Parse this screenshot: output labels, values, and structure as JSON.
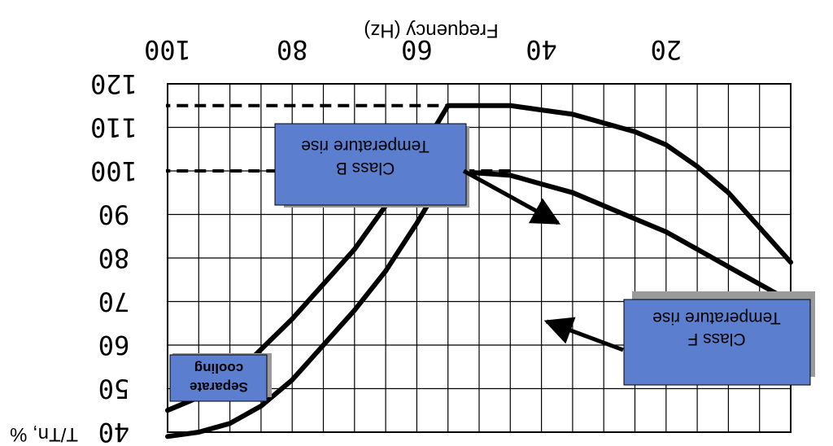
{
  "chart_data": {
    "type": "line",
    "orientation": "mirrored-horizontal-and-vertical",
    "title": "",
    "xlabel": "Frequency (Hz)",
    "ylabel": "T/Tn, %",
    "xlim": [
      0,
      100
    ],
    "ylim": [
      40,
      120
    ],
    "x_ticks": [
      "20",
      "40",
      "60",
      "80",
      "100"
    ],
    "y_ticks": [
      "40",
      "50",
      "60",
      "70",
      "80",
      "90",
      "100",
      "110",
      "120"
    ],
    "grid": true,
    "series": [
      {
        "name": "Class B Temperature rise",
        "x": [
          0,
          5,
          10,
          15,
          20,
          25,
          30,
          35,
          40,
          45,
          55,
          60,
          65,
          70,
          75,
          80,
          85,
          90,
          95,
          100
        ],
        "y": [
          70,
          74,
          78,
          82,
          86,
          89,
          92,
          95,
          97,
          99,
          100,
          88,
          77,
          68,
          60,
          52,
          46,
          42,
          40,
          39
        ]
      },
      {
        "name": "Class F Temperature rise",
        "x": [
          0,
          5,
          10,
          15,
          20,
          25,
          30,
          35,
          40,
          45,
          55,
          60,
          65,
          70,
          75,
          80,
          85,
          90,
          95,
          100
        ],
        "y": [
          79,
          87,
          95,
          101,
          106,
          109,
          111,
          113,
          114,
          115,
          115,
          103,
          92,
          82,
          74,
          66,
          59,
          52,
          48,
          45
        ]
      }
    ],
    "reference_lines": [
      {
        "y": 100,
        "style": "dashed"
      },
      {
        "y": 115,
        "style": "dashed"
      }
    ],
    "annotations": [
      {
        "line1": "Class B",
        "line2": "Temperature rise"
      },
      {
        "line1": "Class F",
        "line2": "Temperature rise"
      },
      {
        "line1": "Separate",
        "line2": "cooling"
      }
    ],
    "colors": {
      "box_fill": "#5b7fce",
      "box_shadow": "#9a9a9a",
      "line": "#000000",
      "grid": "#000000"
    }
  }
}
